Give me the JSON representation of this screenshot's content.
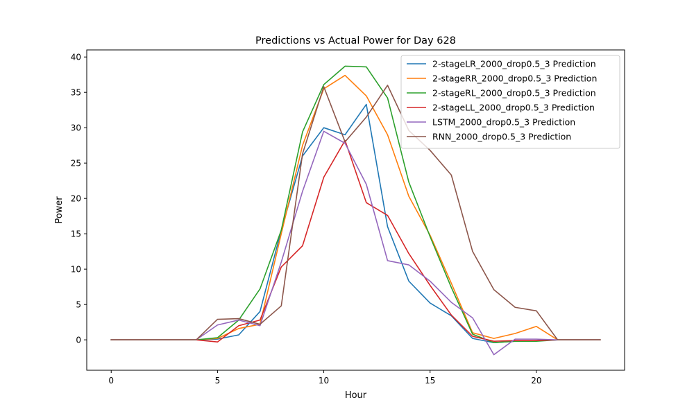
{
  "chart_data": {
    "type": "line",
    "title": "Predictions vs Actual Power for Day 628",
    "xlabel": "Hour",
    "ylabel": "Power",
    "xlim": [
      -1.15,
      24.15
    ],
    "ylim": [
      -4.3,
      41.0
    ],
    "xticks": [
      0,
      5,
      10,
      15,
      20
    ],
    "yticks": [
      0,
      5,
      10,
      15,
      20,
      25,
      30,
      35,
      40
    ],
    "grid": false,
    "legend_position": "top-right",
    "x": [
      0,
      1,
      2,
      3,
      4,
      5,
      6,
      7,
      8,
      9,
      10,
      11,
      12,
      13,
      14,
      15,
      16,
      17,
      18,
      19,
      20,
      21,
      22,
      23
    ],
    "series": [
      {
        "name": "2-stageLR_2000_drop0.5_3 Prediction",
        "color": "#1f77b4",
        "values": [
          0,
          0,
          0,
          0,
          0,
          0.1,
          0.7,
          4.0,
          15.5,
          26.0,
          30.0,
          29.0,
          33.3,
          16.0,
          8.3,
          5.2,
          3.4,
          0.2,
          -0.4,
          -0.2,
          -0.1,
          0,
          0,
          0
        ]
      },
      {
        "name": "2-stageRR_2000_drop0.5_3 Prediction",
        "color": "#ff7f0e",
        "values": [
          0,
          0,
          0,
          0,
          0,
          0.2,
          1.6,
          2.2,
          15.0,
          27.5,
          35.5,
          37.4,
          34.5,
          29.0,
          20.3,
          14.8,
          8.0,
          1.0,
          0.2,
          0.9,
          1.9,
          0,
          0,
          0
        ]
      },
      {
        "name": "2-stageRL_2000_drop0.5_3 Prediction",
        "color": "#2ca02c",
        "values": [
          0,
          0,
          0,
          0,
          0,
          0.3,
          2.8,
          7.2,
          15.5,
          29.4,
          36.1,
          38.7,
          38.6,
          34.2,
          22.3,
          14.6,
          7.4,
          0.8,
          -0.4,
          -0.2,
          -0.2,
          0,
          0,
          0
        ]
      },
      {
        "name": "2-stageLL_2000_drop0.5_3 Prediction",
        "color": "#d62728",
        "values": [
          0,
          0,
          0,
          0,
          0,
          -0.3,
          2.0,
          2.8,
          10.3,
          13.3,
          23.0,
          28.2,
          19.4,
          17.6,
          12.2,
          7.7,
          3.5,
          0.5,
          -0.2,
          -0.1,
          -0.1,
          0,
          0,
          0
        ]
      },
      {
        "name": "LSTM_2000_drop0.5_3 Prediction",
        "color": "#9467bd",
        "values": [
          0,
          0,
          0,
          0,
          0,
          2.1,
          2.8,
          2.0,
          11.0,
          21.0,
          29.5,
          27.8,
          22.0,
          11.2,
          10.6,
          8.3,
          5.3,
          3.1,
          -2.1,
          0.1,
          0.1,
          0,
          0,
          0
        ]
      },
      {
        "name": "RNN_2000_drop0.5_3 Prediction",
        "color": "#8c564b",
        "values": [
          0,
          0,
          0,
          0,
          0,
          2.9,
          3.0,
          2.2,
          4.8,
          26.3,
          35.8,
          28.0,
          31.5,
          36.0,
          29.6,
          26.8,
          23.3,
          12.5,
          7.1,
          4.6,
          4.1,
          0,
          0,
          0
        ]
      }
    ]
  }
}
